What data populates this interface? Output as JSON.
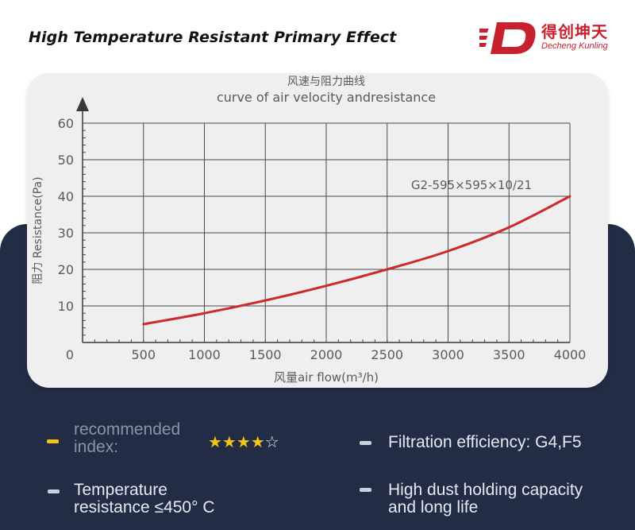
{
  "header": {
    "title": "High Temperature Resistant Primary Effect",
    "logo": {
      "cn": "得创坤天",
      "en": "Decheng Kunling",
      "color": "#c8202d"
    }
  },
  "chart_data": {
    "type": "line",
    "title": "风速与阻力曲线",
    "subtitle": "curve of air velocity andresistance",
    "xlabel": "风量air flow(m³/h)",
    "ylabel": "阻力 Resistance(Pa)",
    "xlim": [
      0,
      4000
    ],
    "ylim": [
      0,
      60
    ],
    "x_ticks": [
      "0",
      "500",
      "1000",
      "1500",
      "2000",
      "2500",
      "3000",
      "3500",
      "4000"
    ],
    "y_ticks": [
      "10",
      "20",
      "30",
      "40",
      "50",
      "60"
    ],
    "grid": true,
    "series": [
      {
        "name": "G2-595×595×10/21",
        "color": "#cc2b2b",
        "x": [
          500,
          1000,
          1500,
          2000,
          2500,
          3000,
          3500,
          4000
        ],
        "y": [
          5,
          8,
          11.5,
          15.5,
          20,
          25,
          31.5,
          40
        ]
      }
    ]
  },
  "features": {
    "recommended_label_1": "recommended",
    "recommended_label_2": "index:",
    "stars": {
      "filled": "★★★★",
      "empty": "☆",
      "rating": 4,
      "max": 5
    },
    "efficiency": "Filtration efficiency: G4,F5",
    "temp_1": "Temperature",
    "temp_2": "resistance ≤450° C",
    "dust_1": "High dust holding capacity",
    "dust_2": "and long life"
  },
  "colors": {
    "accent_yellow": "#f3c419",
    "bullet_gray": "#c9cfdd",
    "panel": "#232c45"
  }
}
